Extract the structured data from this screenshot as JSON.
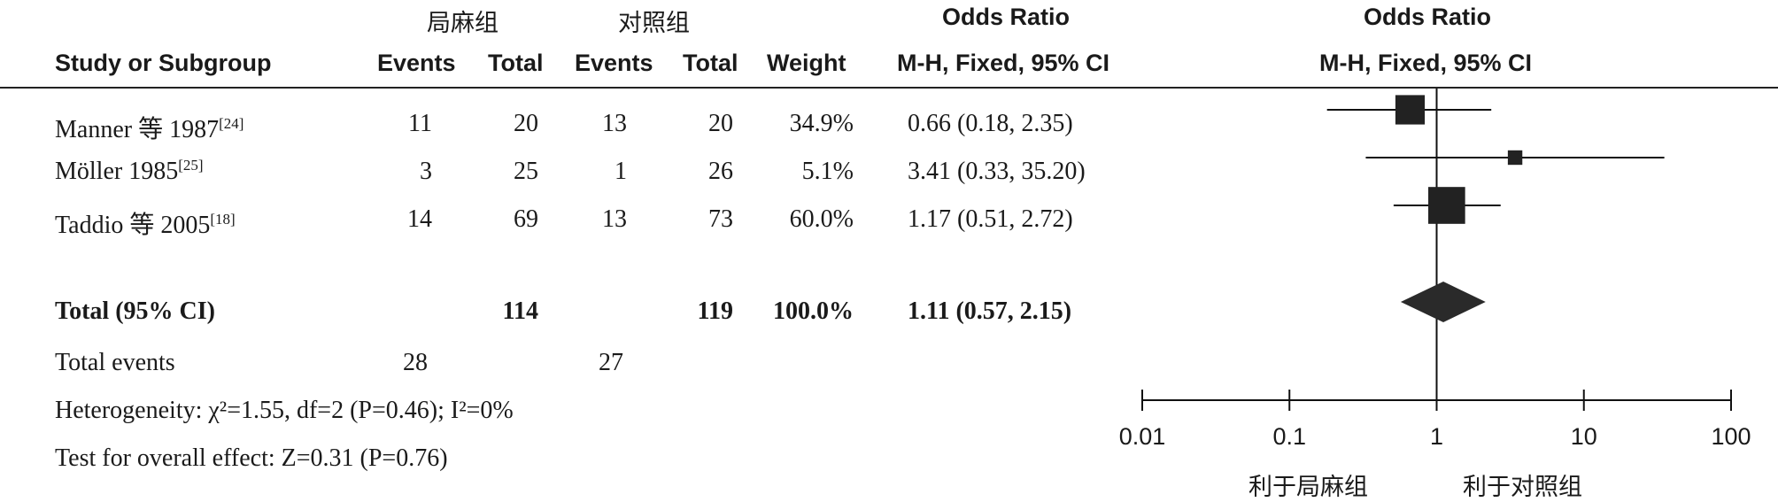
{
  "header": {
    "group_left": "局麻组",
    "group_right": "对照组",
    "study_col": "Study or Subgroup",
    "events": "Events",
    "total": "Total",
    "weight": "Weight",
    "or_title": "Odds Ratio",
    "or_method": "M-H, Fixed, 95% CI"
  },
  "chart_data": {
    "type": "forest",
    "x_scale": "log",
    "xlim": [
      0.01,
      100
    ],
    "x_ticks": [
      "0.01",
      "0.1",
      "1",
      "10",
      "100"
    ],
    "x_tick_values": [
      0.01,
      0.1,
      1,
      10,
      100
    ],
    "favours_left": "利于局麻组",
    "favours_right": "利于对照组",
    "studies": [
      {
        "name": "Manner 等 1987",
        "ref": "[24]",
        "events1": "11",
        "total1": "20",
        "events2": "13",
        "total2": "20",
        "weight": "34.9%",
        "ci_text": "0.66 (0.18, 2.35)",
        "or": 0.66,
        "lo": 0.18,
        "hi": 2.35,
        "w": 34.9
      },
      {
        "name": "Möller 1985",
        "ref": "[25]",
        "events1": "3",
        "total1": "25",
        "events2": "1",
        "total2": "26",
        "weight": "5.1%",
        "ci_text": "3.41 (0.33, 35.20)",
        "or": 3.41,
        "lo": 0.33,
        "hi": 35.2,
        "w": 5.1
      },
      {
        "name": "Taddio 等 2005",
        "ref": "[18]",
        "events1": "14",
        "total1": "69",
        "events2": "13",
        "total2": "73",
        "weight": "60.0%",
        "ci_text": "1.17 (0.51, 2.72)",
        "or": 1.17,
        "lo": 0.51,
        "hi": 2.72,
        "w": 60.0
      }
    ],
    "total": {
      "label": "Total (95% CI)",
      "total1": "114",
      "total2": "119",
      "weight": "100.0%",
      "ci_text": "1.11 (0.57, 2.15)",
      "or": 1.11,
      "lo": 0.57,
      "hi": 2.15
    },
    "total_events": {
      "label": "Total events",
      "events1": "28",
      "events2": "27"
    },
    "heterogeneity": "Heterogeneity: χ²=1.55, df=2 (P=0.46); I²=0%",
    "overall_effect": "Test for overall effect: Z=0.31 (P=0.76)"
  }
}
